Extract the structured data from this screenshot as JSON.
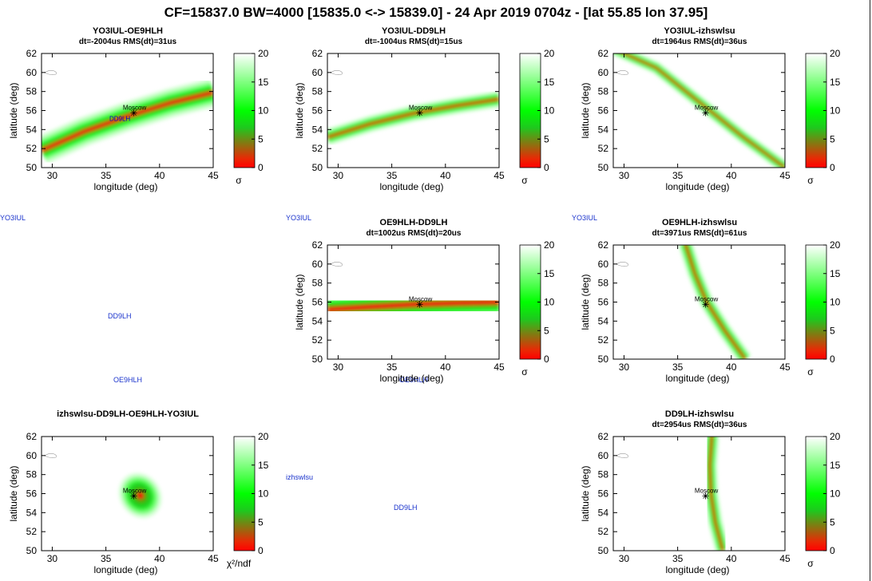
{
  "title": "CF=15837.0 BW=4000 [15835.0 <-> 15839.0] - 24 Apr 2019 0704z - [lat 55.85 lon 37.95]",
  "colors": {
    "low": "#ff0000",
    "mid": "#00ff00",
    "high": "#ffffff",
    "stray_text": "#1a33cc"
  },
  "stray_labels": [
    {
      "text": "YO3IUL"
    },
    {
      "text": "YO3IUL"
    },
    {
      "text": "YO3IUL"
    },
    {
      "text": "DD9LH"
    },
    {
      "text": "OE9HLH"
    },
    {
      "text": "OE9HLH"
    },
    {
      "text": "izhswlsu"
    },
    {
      "text": "DD9LH"
    }
  ],
  "chart_data": [
    {
      "type": "heatmap",
      "title": "YO3IUL-OE9HLH",
      "subtitle": "dt=-2004us RMS(dt)=31us",
      "xlabel": "longitude (deg)",
      "ylabel": "latitude (deg)",
      "xlim": [
        29,
        45
      ],
      "ylim": [
        50,
        62
      ],
      "xticks": [
        30,
        35,
        40,
        45
      ],
      "yticks": [
        50,
        52,
        54,
        56,
        58,
        60,
        62
      ],
      "colorbar": {
        "range": [
          0,
          20
        ],
        "ticks": [
          0,
          5,
          10,
          15,
          20
        ],
        "label": "σ"
      },
      "band": {
        "kind": "hyperbola",
        "points": [
          [
            29,
            51.8
          ],
          [
            33,
            53.8
          ],
          [
            37,
            55.4
          ],
          [
            41,
            56.8
          ],
          [
            45,
            57.9
          ]
        ],
        "sigma_halfwidth_deg": 1.4
      },
      "marker": {
        "label": "Moscow",
        "lon": 37.6,
        "lat": 55.75
      },
      "extra_labels": [
        {
          "text": "DD9LH",
          "lon": 36.3,
          "lat": 54.9,
          "color": "#0000cc"
        }
      ]
    },
    {
      "type": "heatmap",
      "title": "YO3IUL-DD9LH",
      "subtitle": "dt=-1004us RMS(dt)=15us",
      "xlabel": "longitude (deg)",
      "ylabel": "latitude (deg)",
      "xlim": [
        29,
        45
      ],
      "ylim": [
        50,
        62
      ],
      "xticks": [
        30,
        35,
        40,
        45
      ],
      "yticks": [
        50,
        52,
        54,
        56,
        58,
        60,
        62
      ],
      "colorbar": {
        "range": [
          0,
          20
        ],
        "ticks": [
          0,
          5,
          10,
          15,
          20
        ],
        "label": "σ"
      },
      "band": {
        "kind": "hyperbola",
        "points": [
          [
            29,
            53.2
          ],
          [
            33,
            54.6
          ],
          [
            37,
            55.7
          ],
          [
            41,
            56.5
          ],
          [
            45,
            57.2
          ]
        ],
        "sigma_halfwidth_deg": 0.8
      },
      "marker": {
        "label": "Moscow",
        "lon": 37.6,
        "lat": 55.75
      },
      "extra_labels": []
    },
    {
      "type": "heatmap",
      "title": "YO3IUL-izhswlsu",
      "subtitle": "dt=1964us RMS(dt)=36us",
      "xlabel": "longitude (deg)",
      "ylabel": "latitude (deg)",
      "xlim": [
        29,
        45
      ],
      "ylim": [
        50,
        62
      ],
      "xticks": [
        30,
        35,
        40,
        45
      ],
      "yticks": [
        50,
        52,
        54,
        56,
        58,
        60,
        62
      ],
      "colorbar": {
        "range": [
          0,
          20
        ],
        "ticks": [
          0,
          5,
          10,
          15,
          20
        ],
        "label": "σ"
      },
      "band": {
        "kind": "hyperbola",
        "points": [
          [
            29,
            62.5
          ],
          [
            33,
            60.5
          ],
          [
            37,
            56.9
          ],
          [
            41,
            53.3
          ],
          [
            45,
            50
          ]
        ],
        "sigma_halfwidth_deg": 0.6
      },
      "marker": {
        "label": "Moscow",
        "lon": 37.6,
        "lat": 55.75
      },
      "extra_labels": []
    },
    null,
    {
      "type": "heatmap",
      "title": "OE9HLH-DD9LH",
      "subtitle": "dt=1002us RMS(dt)=20us",
      "xlabel": "longitude (deg)",
      "ylabel": "latitude (deg)",
      "xlim": [
        29,
        45
      ],
      "ylim": [
        50,
        62
      ],
      "xticks": [
        30,
        35,
        40,
        45
      ],
      "yticks": [
        50,
        52,
        54,
        56,
        58,
        60,
        62
      ],
      "colorbar": {
        "range": [
          0,
          20
        ],
        "ticks": [
          0,
          5,
          10,
          15,
          20
        ],
        "label": "σ"
      },
      "band": {
        "kind": "hyperbola",
        "points": [
          [
            29,
            55.2
          ],
          [
            33,
            55.5
          ],
          [
            37,
            55.75
          ],
          [
            41,
            55.9
          ],
          [
            45,
            56.0
          ]
        ],
        "sigma_halfwidth_deg": 1.7
      },
      "marker": {
        "label": "Moscow",
        "lon": 37.6,
        "lat": 55.75
      },
      "extra_labels": []
    },
    {
      "type": "heatmap",
      "title": "OE9HLH-izhswlsu",
      "subtitle": "dt=3971us RMS(dt)=61us",
      "xlabel": "longitude (deg)",
      "ylabel": "latitude (deg)",
      "xlim": [
        29,
        45
      ],
      "ylim": [
        50,
        62
      ],
      "xticks": [
        30,
        35,
        40,
        45
      ],
      "yticks": [
        50,
        52,
        54,
        56,
        58,
        60,
        62
      ],
      "colorbar": {
        "range": [
          0,
          20
        ],
        "ticks": [
          0,
          5,
          10,
          15,
          20
        ],
        "label": "σ"
      },
      "band": {
        "kind": "hyperbola",
        "points": [
          [
            35.7,
            62.2
          ],
          [
            36.6,
            59
          ],
          [
            37.7,
            56
          ],
          [
            39.4,
            53
          ],
          [
            41.3,
            50
          ]
        ],
        "sigma_halfwidth_deg": 0.7
      },
      "marker": {
        "label": "Moscow",
        "lon": 37.6,
        "lat": 55.75
      },
      "extra_labels": []
    },
    {
      "type": "heatmap",
      "title": "izhswlsu-DD9LH-OE9HLH-YO3IUL",
      "subtitle": "",
      "xlabel": "longitude (deg)",
      "ylabel": "latitude (deg)",
      "xlim": [
        29,
        45
      ],
      "ylim": [
        50,
        62
      ],
      "xticks": [
        30,
        35,
        40,
        45
      ],
      "yticks": [
        50,
        52,
        54,
        56,
        58,
        60,
        62
      ],
      "colorbar": {
        "range": [
          0,
          20
        ],
        "ticks": [
          0,
          5,
          10,
          15,
          20
        ],
        "label": "χ²/ndf"
      },
      "blob": {
        "center": [
          38.2,
          55.8
        ],
        "rx_deg": 1.9,
        "ry_deg": 2.5,
        "angle_deg": -35
      },
      "marker": {
        "label": "Moscow",
        "lon": 37.6,
        "lat": 55.75
      },
      "extra_labels": []
    },
    null,
    {
      "type": "heatmap",
      "title": "DD9LH-izhswlsu",
      "subtitle": "dt=2954us RMS(dt)=36us",
      "xlabel": "longitude (deg)",
      "ylabel": "latitude (deg)",
      "xlim": [
        29,
        45
      ],
      "ylim": [
        50,
        62
      ],
      "xticks": [
        30,
        35,
        40,
        45
      ],
      "yticks": [
        50,
        52,
        54,
        56,
        58,
        60,
        62
      ],
      "colorbar": {
        "range": [
          0,
          20
        ],
        "ticks": [
          0,
          5,
          10,
          15,
          20
        ],
        "label": "σ"
      },
      "band": {
        "kind": "hyperbola",
        "points": [
          [
            38.2,
            62.2
          ],
          [
            38.0,
            59
          ],
          [
            38.1,
            56
          ],
          [
            38.5,
            53
          ],
          [
            39.2,
            50
          ]
        ],
        "sigma_halfwidth_deg": 0.7
      },
      "marker": {
        "label": "Moscow",
        "lon": 37.6,
        "lat": 55.75
      },
      "extra_labels": []
    }
  ]
}
